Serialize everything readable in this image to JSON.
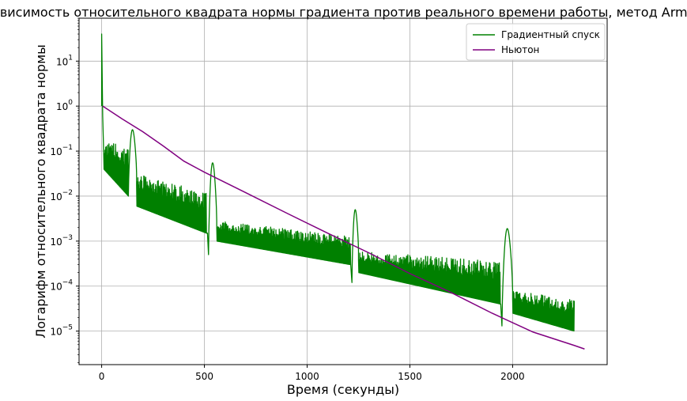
{
  "chart_data": {
    "type": "line",
    "title": "Зависимость относительного квадрата нормы градиента против реального времени работы, метод Armijo",
    "xlabel": "Время (секунды)",
    "ylabel": "Логарифм относительного квадрата нормы",
    "xlim": [
      -110,
      2460
    ],
    "ylim": [
      1.8e-06,
      90
    ],
    "yscale": "log",
    "grid": true,
    "legend_position": "top-right",
    "x_ticks": [
      {
        "value": 0,
        "label": "0"
      },
      {
        "value": 500,
        "label": "500"
      },
      {
        "value": 1000,
        "label": "1000"
      },
      {
        "value": 1500,
        "label": "1500"
      },
      {
        "value": 2000,
        "label": "2000"
      }
    ],
    "y_ticks": [
      {
        "value": 1e-05,
        "base": "10",
        "exp": "−5"
      },
      {
        "value": 0.0001,
        "base": "10",
        "exp": "−4"
      },
      {
        "value": 0.001,
        "base": "10",
        "exp": "−3"
      },
      {
        "value": 0.01,
        "base": "10",
        "exp": "−2"
      },
      {
        "value": 0.1,
        "base": "10",
        "exp": "−1"
      },
      {
        "value": 1,
        "base": "10",
        "exp": "0"
      },
      {
        "value": 10,
        "base": "10",
        "exp": "1"
      }
    ],
    "series": [
      {
        "name": "Градиентный спуск",
        "color": "#008000",
        "style": "oscillating",
        "spikes": [
          {
            "x": 0,
            "y": 40
          },
          {
            "x": 5,
            "y": 0.6
          }
        ],
        "bumps": [
          {
            "x": 145,
            "y": 0.3
          },
          {
            "x": 520,
            "y": 0.055
          },
          {
            "x": 1215,
            "y": 0.005
          },
          {
            "x": 1975,
            "y": 0.0019
          }
        ],
        "segments": [
          {
            "x_start": 10,
            "x_end": 130,
            "upper_start": 0.16,
            "upper_end": 0.13,
            "lower_start": 0.04,
            "lower_end": 0.01
          },
          {
            "x_start": 170,
            "x_end": 510,
            "upper_start": 0.032,
            "upper_end": 0.012,
            "lower_start": 0.006,
            "lower_end": 0.0015
          },
          {
            "x_start": 515,
            "x_end": 520,
            "upper_start": 0.0015,
            "upper_end": 0.0005,
            "lower_start": 0.0015,
            "lower_end": 0.0005
          },
          {
            "x_start": 560,
            "x_end": 1210,
            "upper_start": 0.0028,
            "upper_end": 0.0013,
            "lower_start": 0.001,
            "lower_end": 0.0003
          },
          {
            "x_start": 1212,
            "x_end": 1218,
            "upper_start": 0.0003,
            "upper_end": 0.00012,
            "lower_start": 0.0003,
            "lower_end": 0.00012
          },
          {
            "x_start": 1250,
            "x_end": 1940,
            "upper_start": 0.0006,
            "upper_end": 0.00035,
            "lower_start": 0.0002,
            "lower_end": 4e-05
          },
          {
            "x_start": 1942,
            "x_end": 1948,
            "upper_start": 4e-05,
            "upper_end": 1.3e-05,
            "lower_start": 4e-05,
            "lower_end": 1.3e-05
          },
          {
            "x_start": 2000,
            "x_end": 2300,
            "upper_start": 8e-05,
            "upper_end": 5e-05,
            "lower_start": 2.5e-05,
            "lower_end": 1e-05
          }
        ]
      },
      {
        "name": "Ньютон",
        "color": "#800080",
        "style": "line",
        "x": [
          5,
          100,
          200,
          300,
          400,
          500,
          700,
          900,
          1100,
          1300,
          1500,
          1700,
          1900,
          2100,
          2300,
          2350
        ],
        "y": [
          1.0,
          0.52,
          0.27,
          0.13,
          0.06,
          0.034,
          0.012,
          0.0042,
          0.0015,
          0.00055,
          0.00019,
          7.2e-05,
          2.5e-05,
          9.5e-06,
          4.8e-06,
          4e-06
        ]
      }
    ]
  }
}
